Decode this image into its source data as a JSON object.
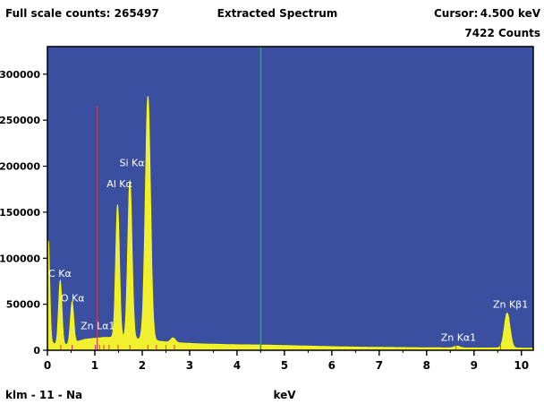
{
  "header": {
    "full_scale": "Full scale counts: 265497",
    "title": "Extracted Spectrum",
    "cursor_label": "Cursor:",
    "cursor_kev": "4.500 keV",
    "cursor_counts": "7422 Counts"
  },
  "footer": {
    "sample_label": "klm - 11 - Na"
  },
  "colors": {
    "plot_bg": "#3b4fa0",
    "spectrum_fill": "#f0f030",
    "spectrum_stroke": "#ffff00",
    "cursor_line": "#2aa86a",
    "marker_line": "#c0405a",
    "peak_marker": "#e0306a",
    "frame": "#000000"
  },
  "chart_data": {
    "type": "area",
    "title": "Extracted Spectrum",
    "xlabel": "keV",
    "ylabel": "",
    "xlim": [
      0,
      10.25
    ],
    "ylim": [
      0,
      330000
    ],
    "x_ticks": [
      0,
      1,
      2,
      3,
      4,
      5,
      6,
      7,
      8,
      9,
      10
    ],
    "y_ticks": [
      0,
      50000,
      100000,
      150000,
      200000,
      250000,
      300000
    ],
    "y_tick_labels": [
      "0",
      "50000",
      "100000",
      "150000",
      "200000",
      "250000",
      "300000"
    ],
    "grid": false,
    "cursor": {
      "x": 4.5,
      "counts": 7422
    },
    "marker_line_x": 1.05,
    "marker_line_top": 265000,
    "background_points": [
      [
        0.02,
        4000
      ],
      [
        0.1,
        8000
      ],
      [
        0.2,
        6000
      ],
      [
        0.4,
        6000
      ],
      [
        0.6,
        9000
      ],
      [
        0.8,
        12000
      ],
      [
        1.0,
        13000
      ],
      [
        1.2,
        14000
      ],
      [
        1.35,
        14000
      ],
      [
        1.6,
        13000
      ],
      [
        1.9,
        12000
      ],
      [
        2.2,
        11000
      ],
      [
        2.5,
        9000
      ],
      [
        2.8,
        8000
      ],
      [
        3.2,
        7000
      ],
      [
        3.6,
        6500
      ],
      [
        4.0,
        6000
      ],
      [
        4.5,
        5800
      ],
      [
        5.0,
        5200
      ],
      [
        5.5,
        4600
      ],
      [
        6.0,
        4000
      ],
      [
        6.5,
        3500
      ],
      [
        7.0,
        3200
      ],
      [
        7.5,
        3000
      ],
      [
        8.0,
        2800
      ],
      [
        8.5,
        2600
      ],
      [
        9.0,
        2500
      ],
      [
        9.5,
        2600
      ],
      [
        10.0,
        2400
      ],
      [
        10.2,
        2200
      ]
    ],
    "peaks": [
      {
        "label": "C Kα",
        "x": 0.27,
        "height": 70000,
        "width": 0.035
      },
      {
        "label": "O Kα",
        "x": 0.52,
        "height": 45000,
        "width": 0.035
      },
      {
        "label": "",
        "x": 0.02,
        "height": 115000,
        "width": 0.03
      },
      {
        "label": "Zn Lα1",
        "x": 1.01,
        "height": 0,
        "width": 0.04
      },
      {
        "label": "",
        "x": 1.48,
        "height": 145000,
        "width": 0.04
      },
      {
        "label": "Al Kα",
        "x": 1.74,
        "height": 172000,
        "width": 0.045
      },
      {
        "label": "Si Kα",
        "x": 2.12,
        "height": 265000,
        "width": 0.055
      },
      {
        "label": "",
        "x": 2.65,
        "height": 5000,
        "width": 0.05
      },
      {
        "label": "Zn Kα1",
        "x": 8.64,
        "height": 2000,
        "width": 0.06
      },
      {
        "label": "Zn Kβ1",
        "x": 9.7,
        "height": 38000,
        "width": 0.06
      }
    ],
    "peak_labels": [
      {
        "text": "C Kα",
        "x": 0.02,
        "y": 80000
      },
      {
        "text": "O Kα",
        "x": 0.28,
        "y": 53000
      },
      {
        "text": "Zn Lα1",
        "x": 0.7,
        "y": 23000
      },
      {
        "text": "Al Kα",
        "x": 1.25,
        "y": 177000
      },
      {
        "text": "Si Kα",
        "x": 1.52,
        "y": 200000
      },
      {
        "text": "Zn Kα1",
        "x": 8.3,
        "y": 10000
      },
      {
        "text": "Zn Kβ1",
        "x": 9.4,
        "y": 46000
      }
    ],
    "marker_ticks_x": [
      0.28,
      0.52,
      1.01,
      1.1,
      1.19,
      1.3,
      1.49,
      1.74,
      2.12,
      2.3,
      2.5,
      2.68,
      8.62,
      9.56
    ]
  }
}
